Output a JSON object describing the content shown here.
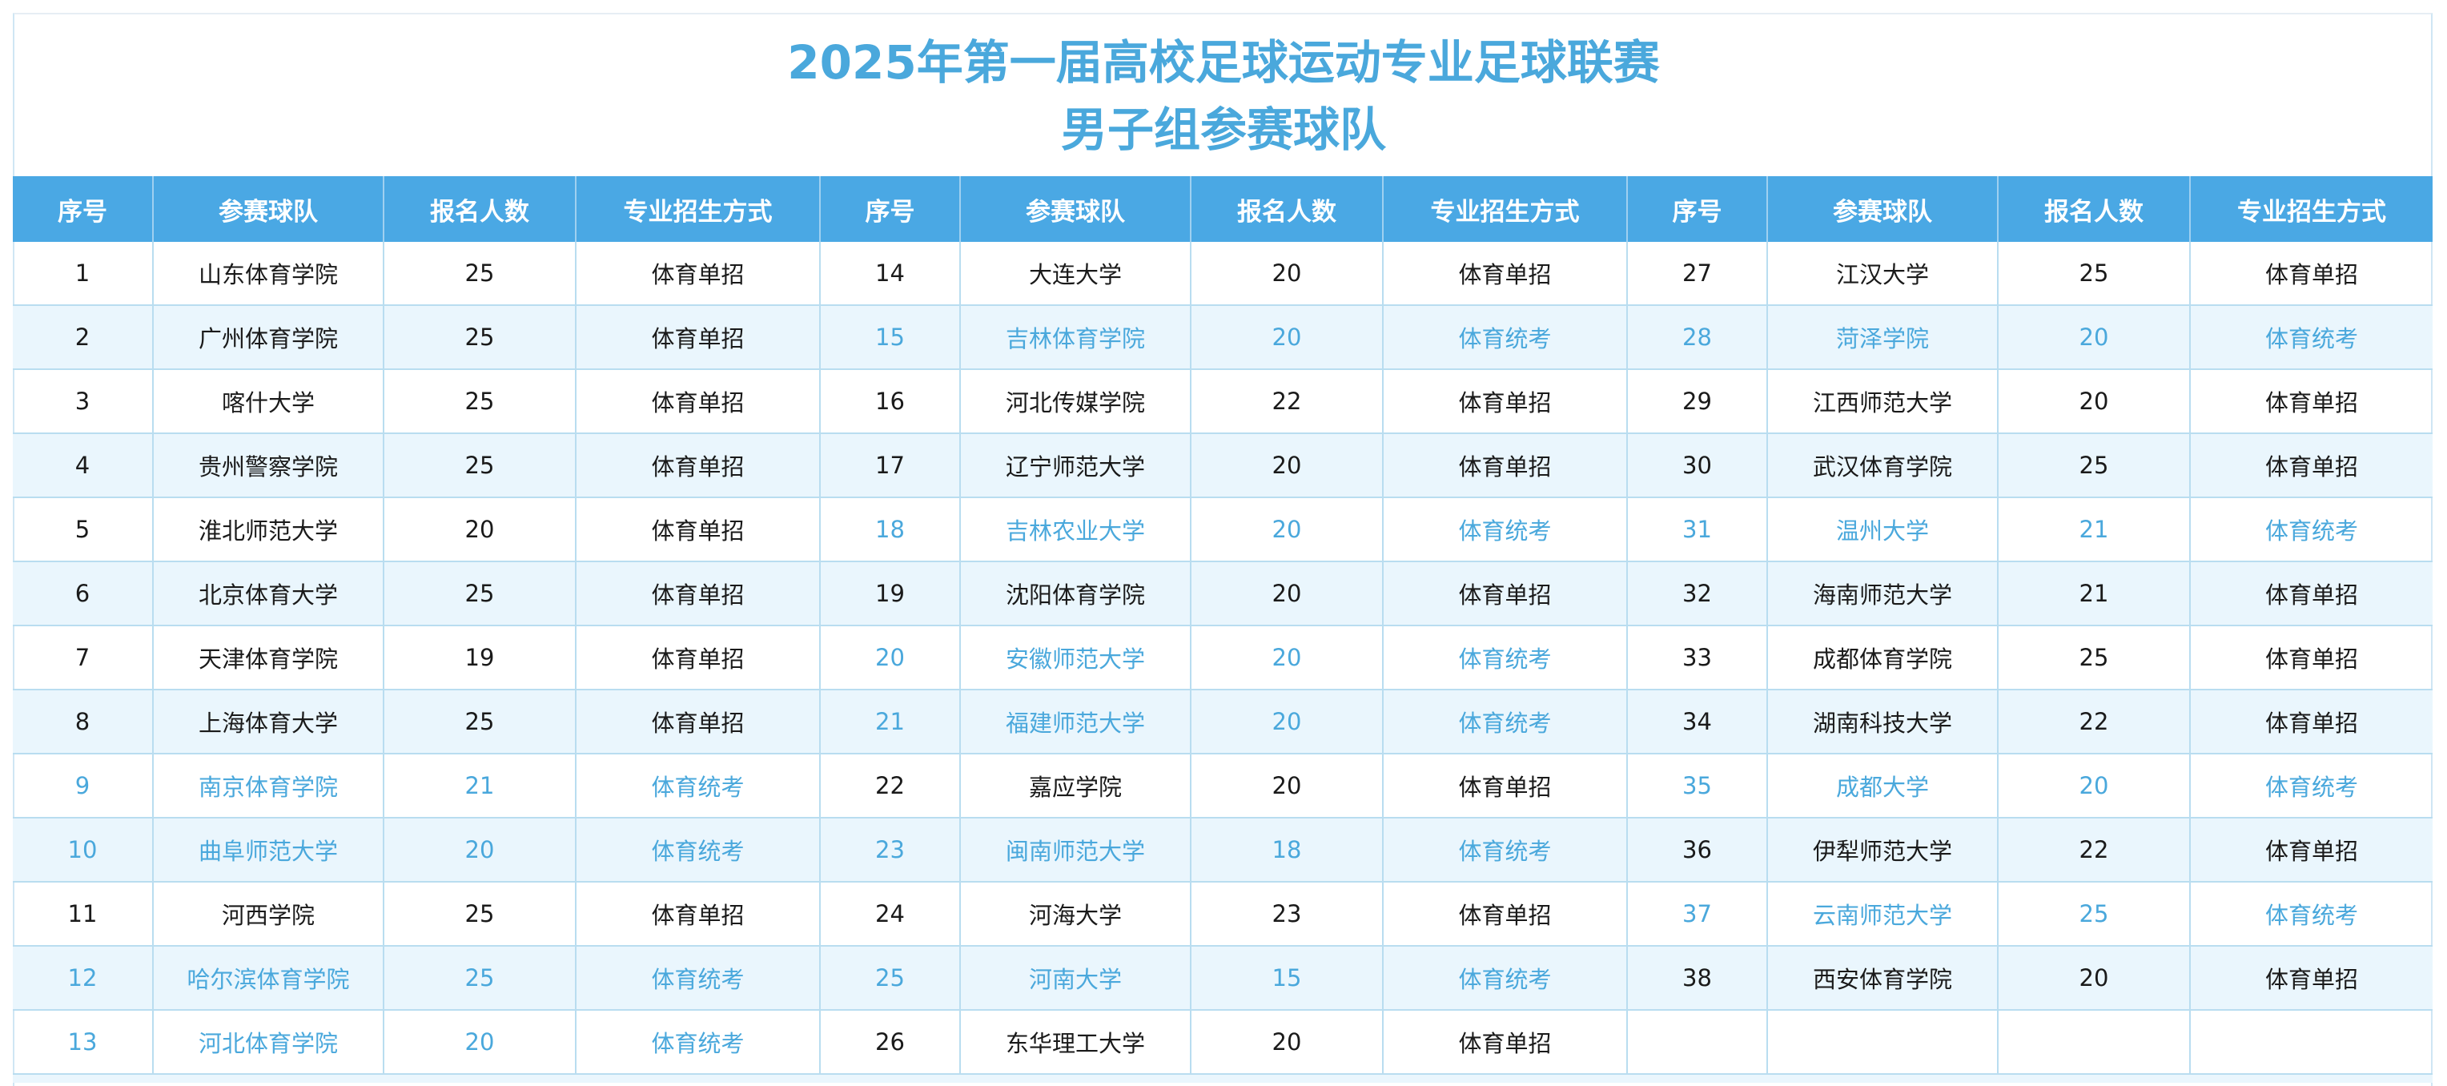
{
  "title_line1": "2025年第一届高校足球运动专业足球联赛",
  "title_line2": "男子组参赛球队",
  "headers": [
    "序号",
    "参赛球队",
    "报名人数",
    "专业招生方式",
    "序号",
    "参赛球队",
    "报名人数",
    "专业招生方式",
    "序号",
    "参赛球队",
    "报名人数",
    "专业招生方式"
  ],
  "colors": {
    "accent": "#4aa8e4",
    "highlight_text": "#4aa8dc",
    "stripe": "#eaf6fd",
    "grid": "#b9ddf0"
  },
  "rows": [
    [
      [
        "1",
        "山东体育学院",
        "25",
        "体育单招"
      ],
      [
        "14",
        "大连大学",
        "20",
        "体育单招"
      ],
      [
        "27",
        "江汉大学",
        "25",
        "体育单招"
      ]
    ],
    [
      [
        "2",
        "广州体育学院",
        "25",
        "体育单招"
      ],
      [
        "15",
        "吉林体育学院",
        "20",
        "体育统考"
      ],
      [
        "28",
        "菏泽学院",
        "20",
        "体育统考"
      ]
    ],
    [
      [
        "3",
        "喀什大学",
        "25",
        "体育单招"
      ],
      [
        "16",
        "河北传媒学院",
        "22",
        "体育单招"
      ],
      [
        "29",
        "江西师范大学",
        "20",
        "体育单招"
      ]
    ],
    [
      [
        "4",
        "贵州警察学院",
        "25",
        "体育单招"
      ],
      [
        "17",
        "辽宁师范大学",
        "20",
        "体育单招"
      ],
      [
        "30",
        "武汉体育学院",
        "25",
        "体育单招"
      ]
    ],
    [
      [
        "5",
        "淮北师范大学",
        "20",
        "体育单招"
      ],
      [
        "18",
        "吉林农业大学",
        "20",
        "体育统考"
      ],
      [
        "31",
        "温州大学",
        "21",
        "体育统考"
      ]
    ],
    [
      [
        "6",
        "北京体育大学",
        "25",
        "体育单招"
      ],
      [
        "19",
        "沈阳体育学院",
        "20",
        "体育单招"
      ],
      [
        "32",
        "海南师范大学",
        "21",
        "体育单招"
      ]
    ],
    [
      [
        "7",
        "天津体育学院",
        "19",
        "体育单招"
      ],
      [
        "20",
        "安徽师范大学",
        "20",
        "体育统考"
      ],
      [
        "33",
        "成都体育学院",
        "25",
        "体育单招"
      ]
    ],
    [
      [
        "8",
        "上海体育大学",
        "25",
        "体育单招"
      ],
      [
        "21",
        "福建师范大学",
        "20",
        "体育统考"
      ],
      [
        "34",
        "湖南科技大学",
        "22",
        "体育单招"
      ]
    ],
    [
      [
        "9",
        "南京体育学院",
        "21",
        "体育统考"
      ],
      [
        "22",
        "嘉应学院",
        "20",
        "体育单招"
      ],
      [
        "35",
        "成都大学",
        "20",
        "体育统考"
      ]
    ],
    [
      [
        "10",
        "曲阜师范大学",
        "20",
        "体育统考"
      ],
      [
        "23",
        "闽南师范大学",
        "18",
        "体育统考"
      ],
      [
        "36",
        "伊犁师范大学",
        "22",
        "体育单招"
      ]
    ],
    [
      [
        "11",
        "河西学院",
        "25",
        "体育单招"
      ],
      [
        "24",
        "河海大学",
        "23",
        "体育单招"
      ],
      [
        "37",
        "云南师范大学",
        "25",
        "体育统考"
      ]
    ],
    [
      [
        "12",
        "哈尔滨体育学院",
        "25",
        "体育统考"
      ],
      [
        "25",
        "河南大学",
        "15",
        "体育统考"
      ],
      [
        "38",
        "西安体育学院",
        "20",
        "体育单招"
      ]
    ],
    [
      [
        "13",
        "河北体育学院",
        "20",
        "体育统考"
      ],
      [
        "26",
        "东华理工大学",
        "20",
        "体育单招"
      ],
      [
        "",
        "",
        "",
        ""
      ]
    ]
  ]
}
